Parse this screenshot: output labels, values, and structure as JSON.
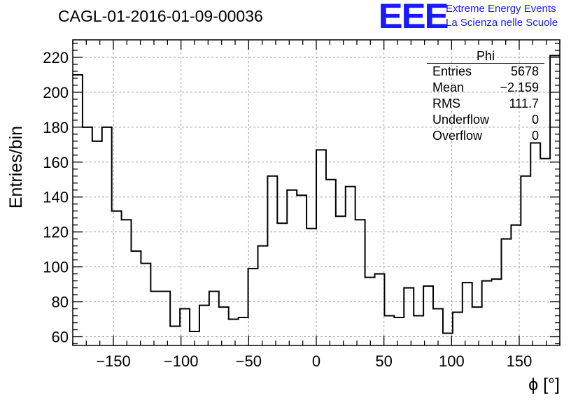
{
  "title": "CAGL-01-2016-01-09-00036",
  "logo": {
    "letters": "EEE",
    "line1": "Extreme Energy Events",
    "line2": "La Scienza nelle Scuole",
    "color": "#1a1aff"
  },
  "stats_box": {
    "title": "Phi",
    "rows": [
      {
        "label": "Entries",
        "value": "5678"
      },
      {
        "label": "Mean",
        "value": "−2.159"
      },
      {
        "label": "RMS",
        "value": "111.7"
      },
      {
        "label": "Underflow",
        "value": "0"
      },
      {
        "label": "Overflow",
        "value": "0"
      }
    ]
  },
  "chart_data": {
    "type": "histogram",
    "title": "CAGL-01-2016-01-09-00036",
    "xlabel": "ϕ [°]",
    "ylabel": "Entries/bin",
    "xlim": [
      -180,
      180
    ],
    "ylim": [
      55,
      230
    ],
    "grid": true,
    "bin_edges_start": -180,
    "bin_width": 7.2,
    "values": [
      210,
      180,
      172,
      180,
      132,
      127,
      109,
      102,
      86,
      86,
      66,
      76,
      63,
      78,
      86,
      77,
      70,
      71,
      99,
      112,
      152,
      125,
      144,
      141,
      122,
      167,
      150,
      129,
      146,
      127,
      94,
      96,
      72,
      71,
      88,
      72,
      89,
      76,
      62,
      74,
      91,
      77,
      92,
      93,
      116,
      124,
      152,
      171,
      162,
      221
    ],
    "xticks": [
      -150,
      -100,
      -50,
      0,
      50,
      100,
      150
    ],
    "yticks": [
      60,
      80,
      100,
      120,
      140,
      160,
      180,
      200,
      220
    ]
  }
}
